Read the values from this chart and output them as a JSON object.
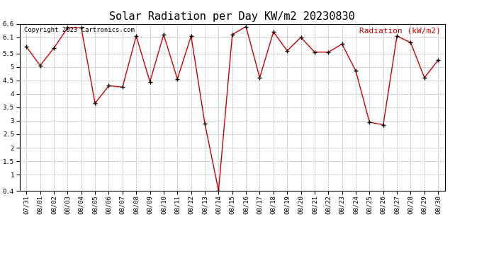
{
  "title": "Solar Radiation per Day KW/m2 20230830",
  "copyright_text": "Copyright 2023 Cartronics.com",
  "legend_label": "Radiation (kW/m2)",
  "dates": [
    "07/31",
    "08/01",
    "08/02",
    "08/03",
    "08/04",
    "08/05",
    "08/06",
    "08/07",
    "08/08",
    "08/09",
    "08/10",
    "08/11",
    "08/12",
    "08/13",
    "08/14",
    "08/15",
    "08/16",
    "08/17",
    "08/18",
    "08/19",
    "08/20",
    "08/21",
    "08/22",
    "08/23",
    "08/24",
    "08/25",
    "08/26",
    "08/27",
    "08/28",
    "08/29",
    "08/30"
  ],
  "values": [
    5.75,
    5.05,
    5.7,
    6.45,
    6.45,
    3.65,
    4.3,
    4.25,
    6.15,
    4.45,
    6.2,
    4.55,
    6.15,
    2.9,
    0.4,
    6.2,
    6.5,
    4.6,
    6.3,
    5.6,
    6.1,
    5.55,
    5.55,
    5.85,
    4.85,
    2.95,
    2.85,
    6.15,
    5.9,
    4.6,
    5.25
  ],
  "line_color": "#cc0000",
  "marker_color": "#000000",
  "background_color": "#ffffff",
  "grid_color": "#aaaaaa",
  "ylim": [
    0.4,
    6.6
  ],
  "yticks": [
    0.4,
    1.0,
    1.5,
    2.0,
    2.5,
    3.0,
    3.5,
    4.0,
    4.5,
    5.0,
    5.5,
    6.1,
    6.6
  ],
  "title_fontsize": 11,
  "legend_fontsize": 8,
  "copyright_fontsize": 6.5,
  "tick_fontsize": 6.5
}
